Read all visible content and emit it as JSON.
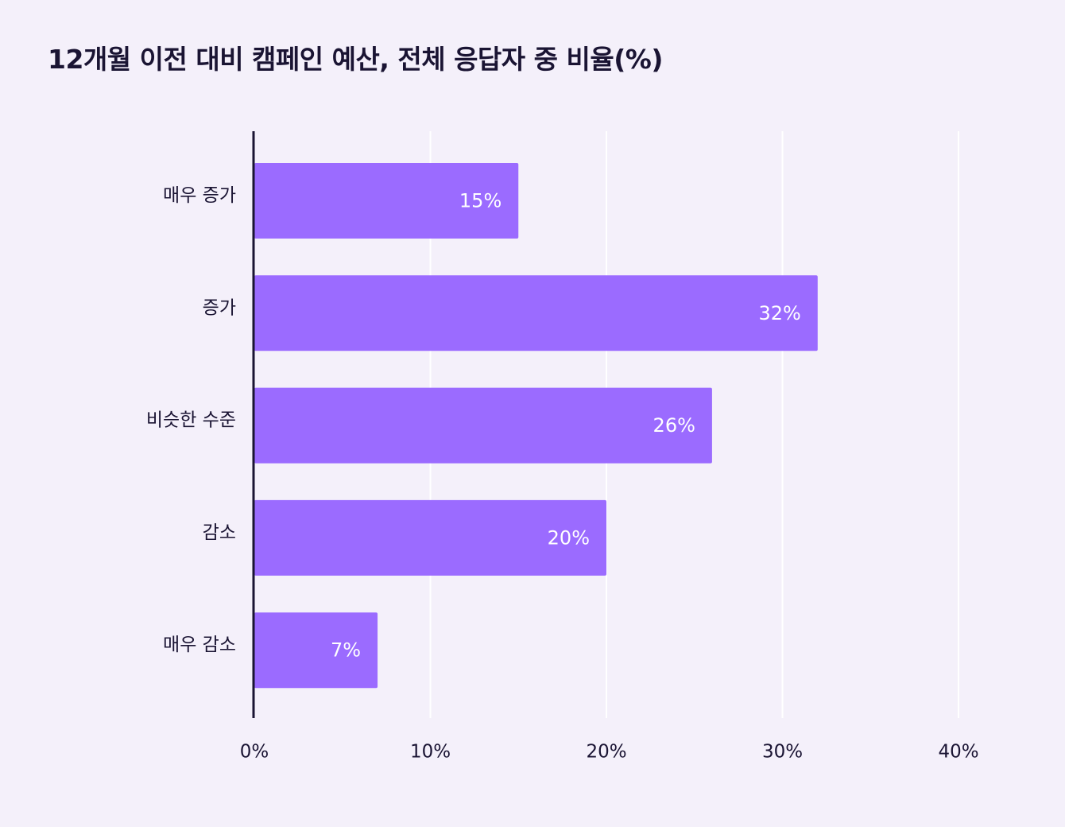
{
  "chart_data": {
    "type": "bar",
    "orientation": "horizontal",
    "title": "12개월 이전 대비 캠페인 예산, 전체 응답자 중 비율(%)",
    "categories": [
      "매우 증가",
      "증가",
      "비슷한 수준",
      "감소",
      "매우 감소"
    ],
    "values": [
      15,
      32,
      26,
      20,
      7
    ],
    "value_labels": [
      "15%",
      "32%",
      "26%",
      "20%",
      "7%"
    ],
    "xlim": [
      0,
      40
    ],
    "x_ticks": [
      0,
      10,
      20,
      30,
      40
    ],
    "x_tick_labels": [
      "0%",
      "10%",
      "20%",
      "30%",
      "40%"
    ],
    "xlabel": "",
    "ylabel": "",
    "grid": "vertical",
    "legend": "none",
    "colors": {
      "bar": "#9b6bff",
      "background": "#f4f0fa",
      "axis": "#1a1433",
      "grid": "#ffffff",
      "value_text": "#ffffff",
      "text": "#1a1433"
    }
  }
}
